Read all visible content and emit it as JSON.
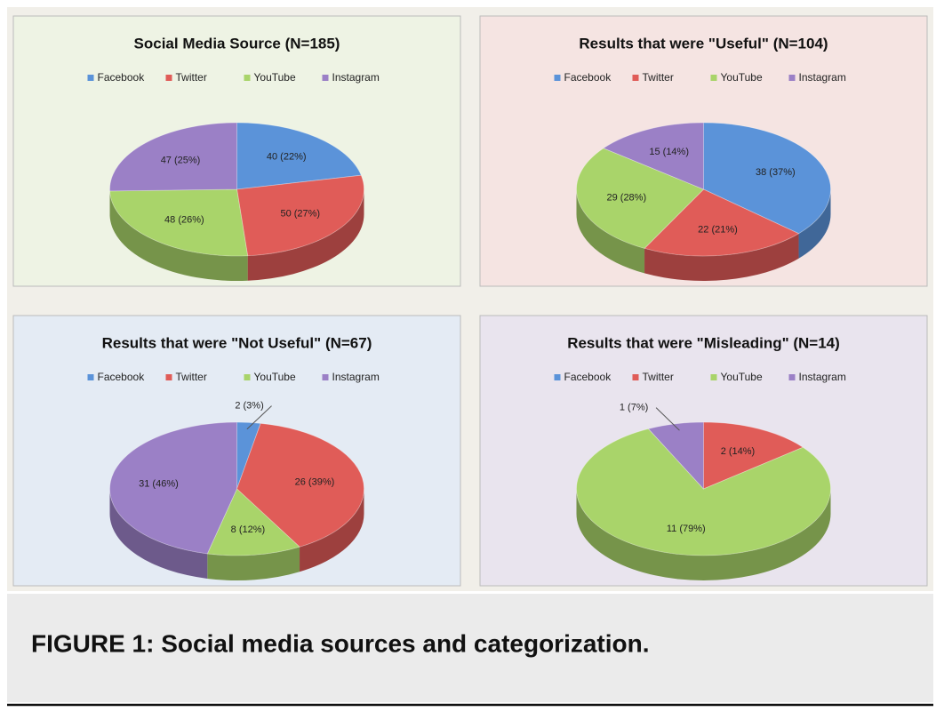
{
  "chart_data": [
    {
      "type": "pie",
      "title": "Social Media Source (N=185)",
      "categories": [
        "Facebook",
        "Twitter",
        "YouTube",
        "Instagram"
      ],
      "values": [
        40,
        50,
        48,
        47
      ],
      "value_labels": [
        "40 (22%)",
        "50 (27%)",
        "48 (26%)",
        "47 (25%)"
      ],
      "colors": [
        "#5b93d9",
        "#e05c58",
        "#a9d46a",
        "#9b80c6"
      ],
      "background": "#eef3e4"
    },
    {
      "type": "pie",
      "title": "Results that were \"Useful\" (N=104)",
      "categories": [
        "Facebook",
        "Twitter",
        "YouTube",
        "Instagram"
      ],
      "values": [
        38,
        22,
        29,
        15
      ],
      "value_labels": [
        "38 (37%)",
        "22 (21%)",
        "29 (28%)",
        "15 (14%)"
      ],
      "colors": [
        "#5b93d9",
        "#e05c58",
        "#a9d46a",
        "#9b80c6"
      ],
      "background": "#f5e4e2"
    },
    {
      "type": "pie",
      "title": "Results that were \"Not Useful\" (N=67)",
      "categories": [
        "Facebook",
        "Twitter",
        "YouTube",
        "Instagram"
      ],
      "values": [
        2,
        26,
        8,
        31
      ],
      "value_labels": [
        "2 (3%)",
        "26 (39%)",
        "8 (12%)",
        "31 (46%)"
      ],
      "colors": [
        "#5b93d9",
        "#e05c58",
        "#a9d46a",
        "#9b80c6"
      ],
      "background": "#e4ebf4"
    },
    {
      "type": "pie",
      "title": "Results that were \"Misleading\" (N=14)",
      "categories": [
        "Facebook",
        "Twitter",
        "YouTube",
        "Instagram"
      ],
      "values": [
        0,
        2,
        11,
        1
      ],
      "value_labels": [
        null,
        "2 (14%)",
        "11 (79%)",
        "1 (7%)"
      ],
      "colors": [
        "#5b93d9",
        "#e05c58",
        "#a9d46a",
        "#9b80c6"
      ],
      "background": "#e9e4ee"
    }
  ],
  "caption": "FIGURE 1: Social media sources and categorization."
}
